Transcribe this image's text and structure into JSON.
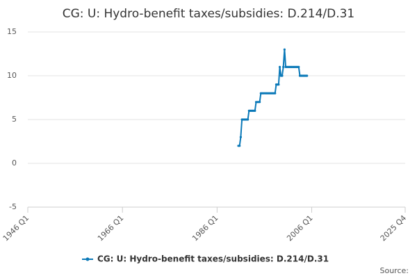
{
  "chart_data": {
    "type": "line",
    "title": "CG: U: Hydro-benefit taxes/subsidies: D.214/D.31",
    "source": "Source:",
    "x": [
      "1990 Q3",
      "1990 Q4",
      "1991 Q1",
      "1991 Q2",
      "1991 Q3",
      "1991 Q4",
      "1992 Q1",
      "1992 Q2",
      "1992 Q3",
      "1992 Q4",
      "1993 Q1",
      "1993 Q2",
      "1993 Q3",
      "1993 Q4",
      "1994 Q1",
      "1994 Q2",
      "1994 Q3",
      "1994 Q4",
      "1995 Q1",
      "1995 Q2",
      "1995 Q3",
      "1995 Q4",
      "1996 Q1",
      "1996 Q2",
      "1996 Q3",
      "1996 Q4",
      "1997 Q1",
      "1997 Q2",
      "1997 Q3",
      "1997 Q4",
      "1998 Q1",
      "1998 Q2",
      "1998 Q3",
      "1998 Q4",
      "1999 Q1",
      "1999 Q2",
      "1999 Q3",
      "1999 Q4",
      "2000 Q1",
      "2000 Q2",
      "2000 Q3",
      "2000 Q4",
      "2001 Q1",
      "2001 Q2",
      "2001 Q3",
      "2001 Q4",
      "2002 Q1",
      "2002 Q2",
      "2002 Q3",
      "2002 Q4",
      "2003 Q1",
      "2003 Q2",
      "2003 Q3",
      "2003 Q4",
      "2004 Q1",
      "2004 Q2",
      "2004 Q3",
      "2004 Q4",
      "2005 Q1"
    ],
    "series": [
      {
        "name": "CG: U: Hydro-benefit taxes/subsidies: D.214/D.31",
        "color": "#0b79b8",
        "values": [
          2,
          2,
          3,
          5,
          5,
          5,
          5,
          5,
          5,
          6,
          6,
          6,
          6,
          6,
          6,
          7,
          7,
          7,
          7,
          8,
          8,
          8,
          8,
          8,
          8,
          8,
          8,
          8,
          8,
          8,
          8,
          8,
          9,
          9,
          9,
          11,
          10,
          10,
          11,
          13,
          11,
          11,
          11,
          11,
          11,
          11,
          11,
          11,
          11,
          11,
          11,
          11,
          10,
          10,
          10,
          10,
          10,
          10,
          10
        ]
      }
    ],
    "xlim": [
      "1946 Q1",
      "2025 Q4"
    ],
    "xticks": [
      "1946 Q1",
      "1966 Q1",
      "1986 Q1",
      "2006 Q1",
      "2025 Q4"
    ],
    "ylim": [
      -5,
      15
    ],
    "yticks": [
      -5,
      0,
      5,
      10,
      15
    ],
    "grid": true
  }
}
